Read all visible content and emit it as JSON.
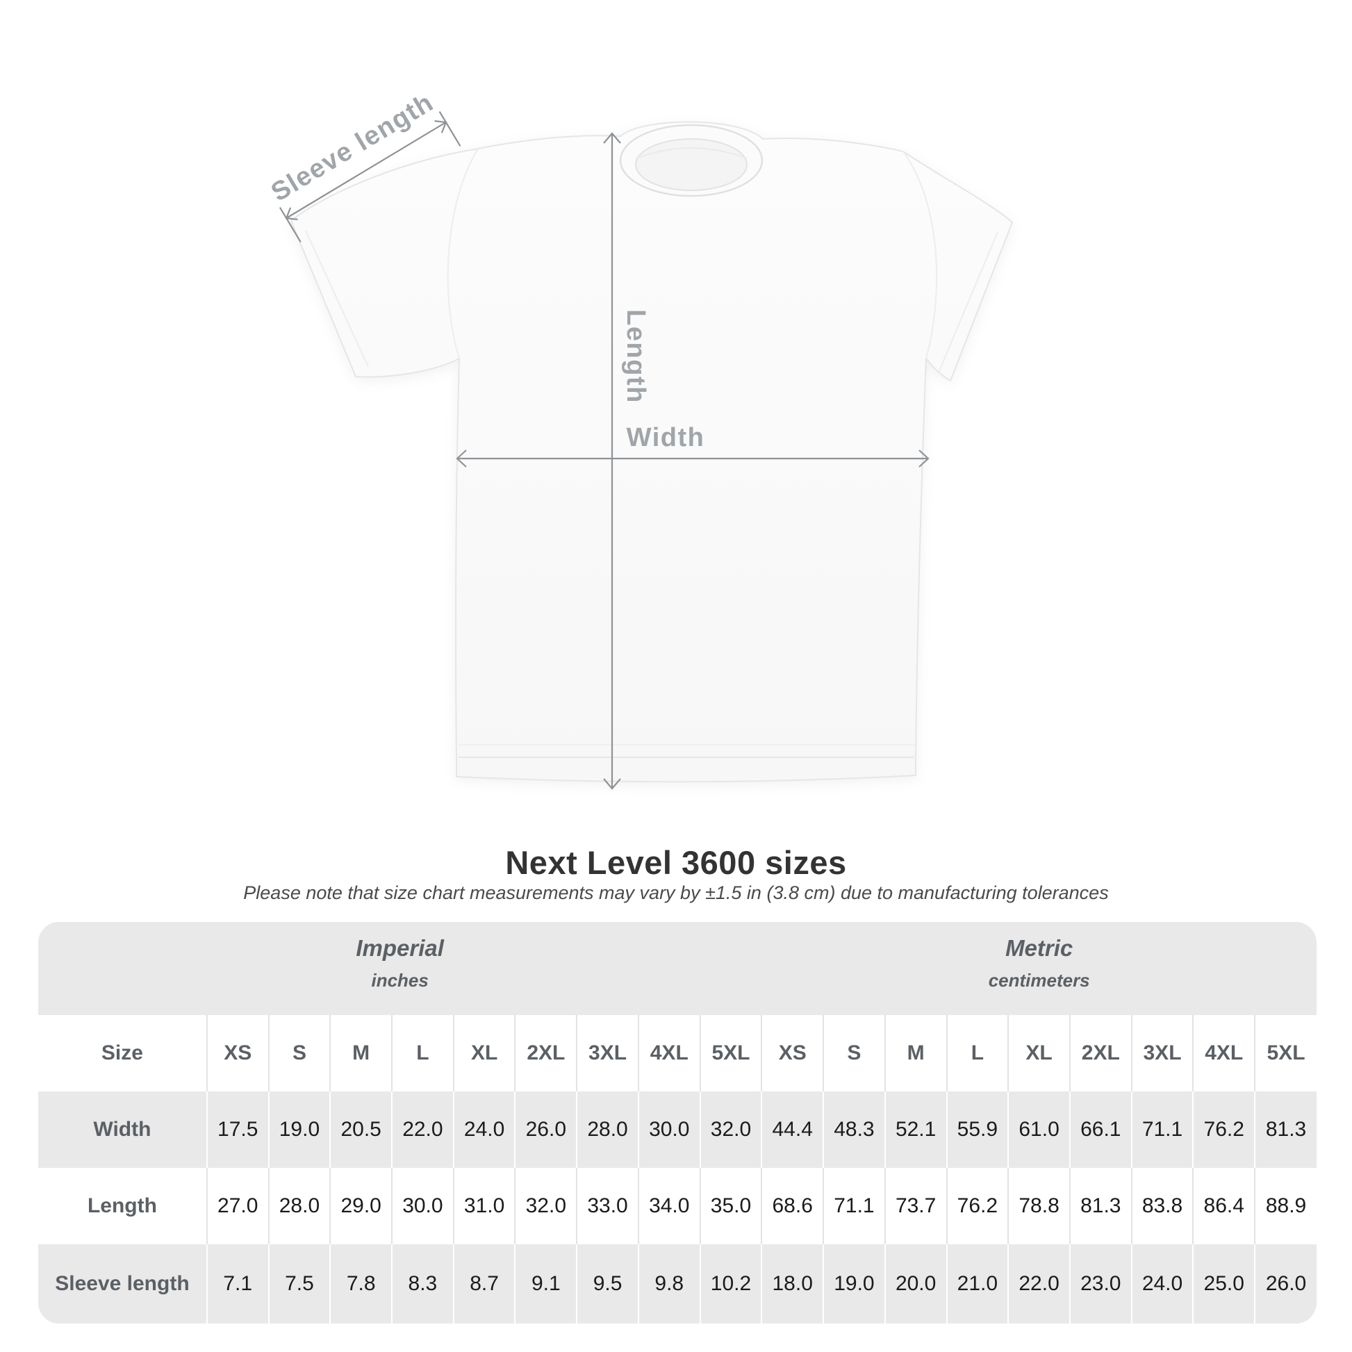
{
  "diagram": {
    "sleeve_label": "Sleeve length",
    "length_label": "Length",
    "width_label": "Width"
  },
  "title": "Next Level 3600 sizes",
  "subtitle": "Please note that size chart measurements may vary by ±1.5 in (3.8 cm) due to manufacturing tolerances",
  "table": {
    "imperial": {
      "title": "Imperial",
      "subtitle": "inches"
    },
    "metric": {
      "title": "Metric",
      "subtitle": "centimeters"
    },
    "size_label": "Size",
    "sizes": [
      "XS",
      "S",
      "M",
      "L",
      "XL",
      "2XL",
      "3XL",
      "4XL",
      "5XL"
    ],
    "rows": [
      {
        "label": "Width",
        "imperial": [
          "17.5",
          "19.0",
          "20.5",
          "22.0",
          "24.0",
          "26.0",
          "28.0",
          "30.0",
          "32.0"
        ],
        "metric": [
          "44.4",
          "48.3",
          "52.1",
          "55.9",
          "61.0",
          "66.1",
          "71.1",
          "76.2",
          "81.3"
        ]
      },
      {
        "label": "Length",
        "imperial": [
          "27.0",
          "28.0",
          "29.0",
          "30.0",
          "31.0",
          "32.0",
          "33.0",
          "34.0",
          "35.0"
        ],
        "metric": [
          "68.6",
          "71.1",
          "73.7",
          "76.2",
          "78.8",
          "81.3",
          "83.8",
          "86.4",
          "88.9"
        ]
      },
      {
        "label": "Sleeve length",
        "imperial": [
          "7.1",
          "7.5",
          "7.8",
          "8.3",
          "8.7",
          "9.1",
          "9.5",
          "9.8",
          "10.2"
        ],
        "metric": [
          "18.0",
          "19.0",
          "20.0",
          "21.0",
          "22.0",
          "23.0",
          "24.0",
          "25.0",
          "26.0"
        ]
      }
    ]
  },
  "colors": {
    "card_background": "#e9e9e9",
    "row_white": "#ffffff",
    "header_text": "#5b6065",
    "value_text": "#1b1b1b",
    "diagram_label": "#a0a5aa",
    "arrow": "#8f9397",
    "title_text": "#333333",
    "shirt_fill": "#fbfbfb"
  }
}
